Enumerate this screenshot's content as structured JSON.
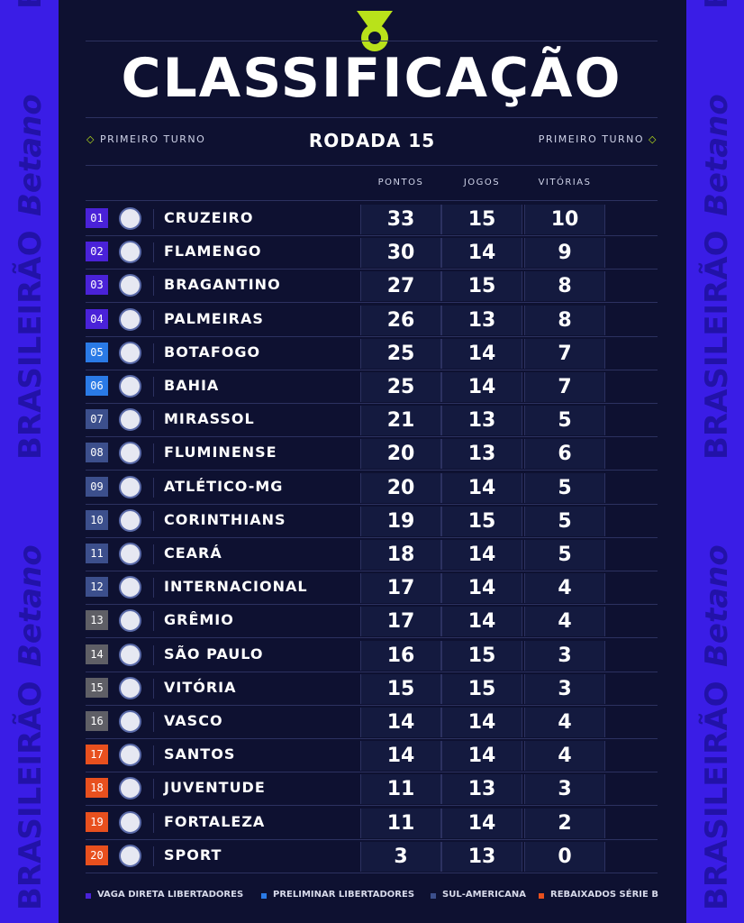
{
  "side_text": [
    "BRASILEIRÃO",
    "Betano"
  ],
  "header": {
    "title": "CLASSIFICAÇÃO",
    "left": "PRIMEIRO TURNO",
    "center": "RODADA 15",
    "right": "PRIMEIRO TURNO"
  },
  "table": {
    "columns": [
      "PONTOS",
      "JOGOS",
      "VITÓRIAS"
    ],
    "rows": [
      {
        "pos": "01",
        "team": "CRUZEIRO",
        "cells": [
          33,
          15,
          10
        ],
        "badge_color": "#4a22d8"
      },
      {
        "pos": "02",
        "team": "FLAMENGO",
        "cells": [
          30,
          14,
          9
        ],
        "badge_color": "#4a22d8"
      },
      {
        "pos": "03",
        "team": "BRAGANTINO",
        "cells": [
          27,
          15,
          8
        ],
        "badge_color": "#4a22d8"
      },
      {
        "pos": "04",
        "team": "PALMEIRAS",
        "cells": [
          26,
          13,
          8
        ],
        "badge_color": "#4a22d8"
      },
      {
        "pos": "05",
        "team": "BOTAFOGO",
        "cells": [
          25,
          14,
          7
        ],
        "badge_color": "#2a7ae6"
      },
      {
        "pos": "06",
        "team": "BAHIA",
        "cells": [
          25,
          14,
          7
        ],
        "badge_color": "#2a7ae6"
      },
      {
        "pos": "07",
        "team": "MIRASSOL",
        "cells": [
          21,
          13,
          5
        ],
        "badge_color": "#3c4f8c"
      },
      {
        "pos": "08",
        "team": "FLUMINENSE",
        "cells": [
          20,
          13,
          6
        ],
        "badge_color": "#3c4f8c"
      },
      {
        "pos": "09",
        "team": "ATLÉTICO-MG",
        "cells": [
          20,
          14,
          5
        ],
        "badge_color": "#3c4f8c"
      },
      {
        "pos": "10",
        "team": "CORINTHIANS",
        "cells": [
          19,
          15,
          5
        ],
        "badge_color": "#3c4f8c"
      },
      {
        "pos": "11",
        "team": "CEARÁ",
        "cells": [
          18,
          14,
          5
        ],
        "badge_color": "#3c4f8c"
      },
      {
        "pos": "12",
        "team": "INTERNACIONAL",
        "cells": [
          17,
          14,
          4
        ],
        "badge_color": "#3c4f8c"
      },
      {
        "pos": "13",
        "team": "GRÊMIO",
        "cells": [
          17,
          14,
          4
        ],
        "badge_color": "#5f5f66"
      },
      {
        "pos": "14",
        "team": "SÃO PAULO",
        "cells": [
          16,
          15,
          3
        ],
        "badge_color": "#5f5f66"
      },
      {
        "pos": "15",
        "team": "VITÓRIA",
        "cells": [
          15,
          15,
          3
        ],
        "badge_color": "#5f5f66"
      },
      {
        "pos": "16",
        "team": "VASCO",
        "cells": [
          14,
          14,
          4
        ],
        "badge_color": "#5f5f66"
      },
      {
        "pos": "17",
        "team": "SANTOS",
        "cells": [
          14,
          14,
          4
        ],
        "badge_color": "#e8501e"
      },
      {
        "pos": "18",
        "team": "JUVENTUDE",
        "cells": [
          11,
          13,
          3
        ],
        "badge_color": "#e8501e"
      },
      {
        "pos": "19",
        "team": "FORTALEZA",
        "cells": [
          11,
          14,
          2
        ],
        "badge_color": "#e8501e"
      },
      {
        "pos": "20",
        "team": "SPORT",
        "cells": [
          3,
          13,
          0
        ],
        "badge_color": "#e8501e"
      }
    ]
  },
  "legend": [
    {
      "label": "VAGA DIRETA LIBERTADORES",
      "color": "#4a22d8"
    },
    {
      "label": "PRELIMINAR LIBERTADORES",
      "color": "#2a7ae6"
    },
    {
      "label": "SUL-AMERICANA",
      "color": "#3c4f8c"
    },
    {
      "label": "REBAIXADOS SÉRIE B",
      "color": "#e8501e"
    }
  ]
}
